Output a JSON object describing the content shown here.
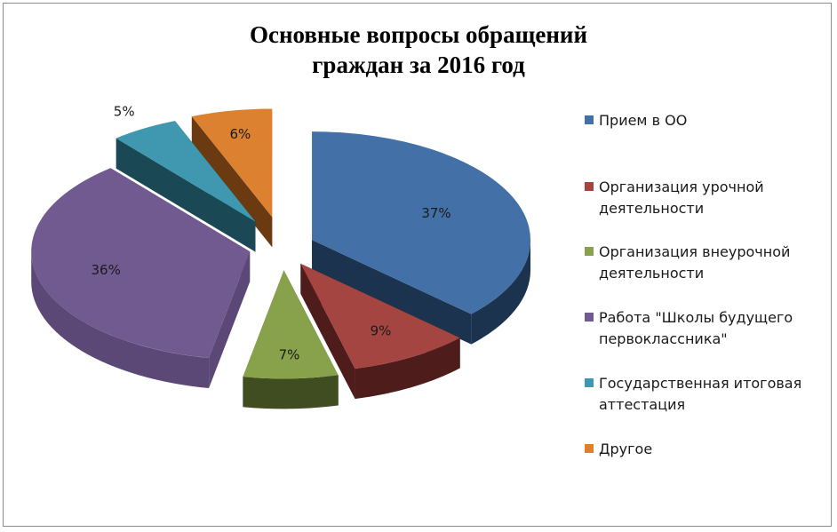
{
  "chart_data": {
    "type": "pie",
    "title_line1": "Основные вопросы обращений",
    "title_line2": "граждан за 2016 год",
    "categories": [
      "Прием в ОО",
      "Организация урочной деятельности",
      "Организация внеурочной деятельности",
      "Работа \"Школы будущего первоклассника\"",
      "Государственная итоговая аттестация",
      "Другое"
    ],
    "legend_lines": [
      [
        "Прием в ОО"
      ],
      [
        "Организация урочной",
        "деятельности"
      ],
      [
        "Организация внеурочной",
        "деятельности"
      ],
      [
        "Работа \"Школы будущего",
        "первоклассника\""
      ],
      [
        "Государственная итоговая",
        "аттестация"
      ],
      [
        "Другое"
      ]
    ],
    "values": [
      37,
      9,
      7,
      36,
      5,
      6
    ],
    "labels": [
      "37%",
      "9%",
      "7%",
      "36%",
      "5%",
      "6%"
    ],
    "colors": [
      "#4470a8",
      "#a54542",
      "#87a24a",
      "#715a90",
      "#3f98af",
      "#db8130"
    ],
    "side_colors": [
      "#1c3350",
      "#4d1c1b",
      "#3f4d20",
      "#5b4876",
      "#1a4855",
      "#6b3a10"
    ],
    "legend_position": "right",
    "style": "3d-exploded-pie"
  }
}
